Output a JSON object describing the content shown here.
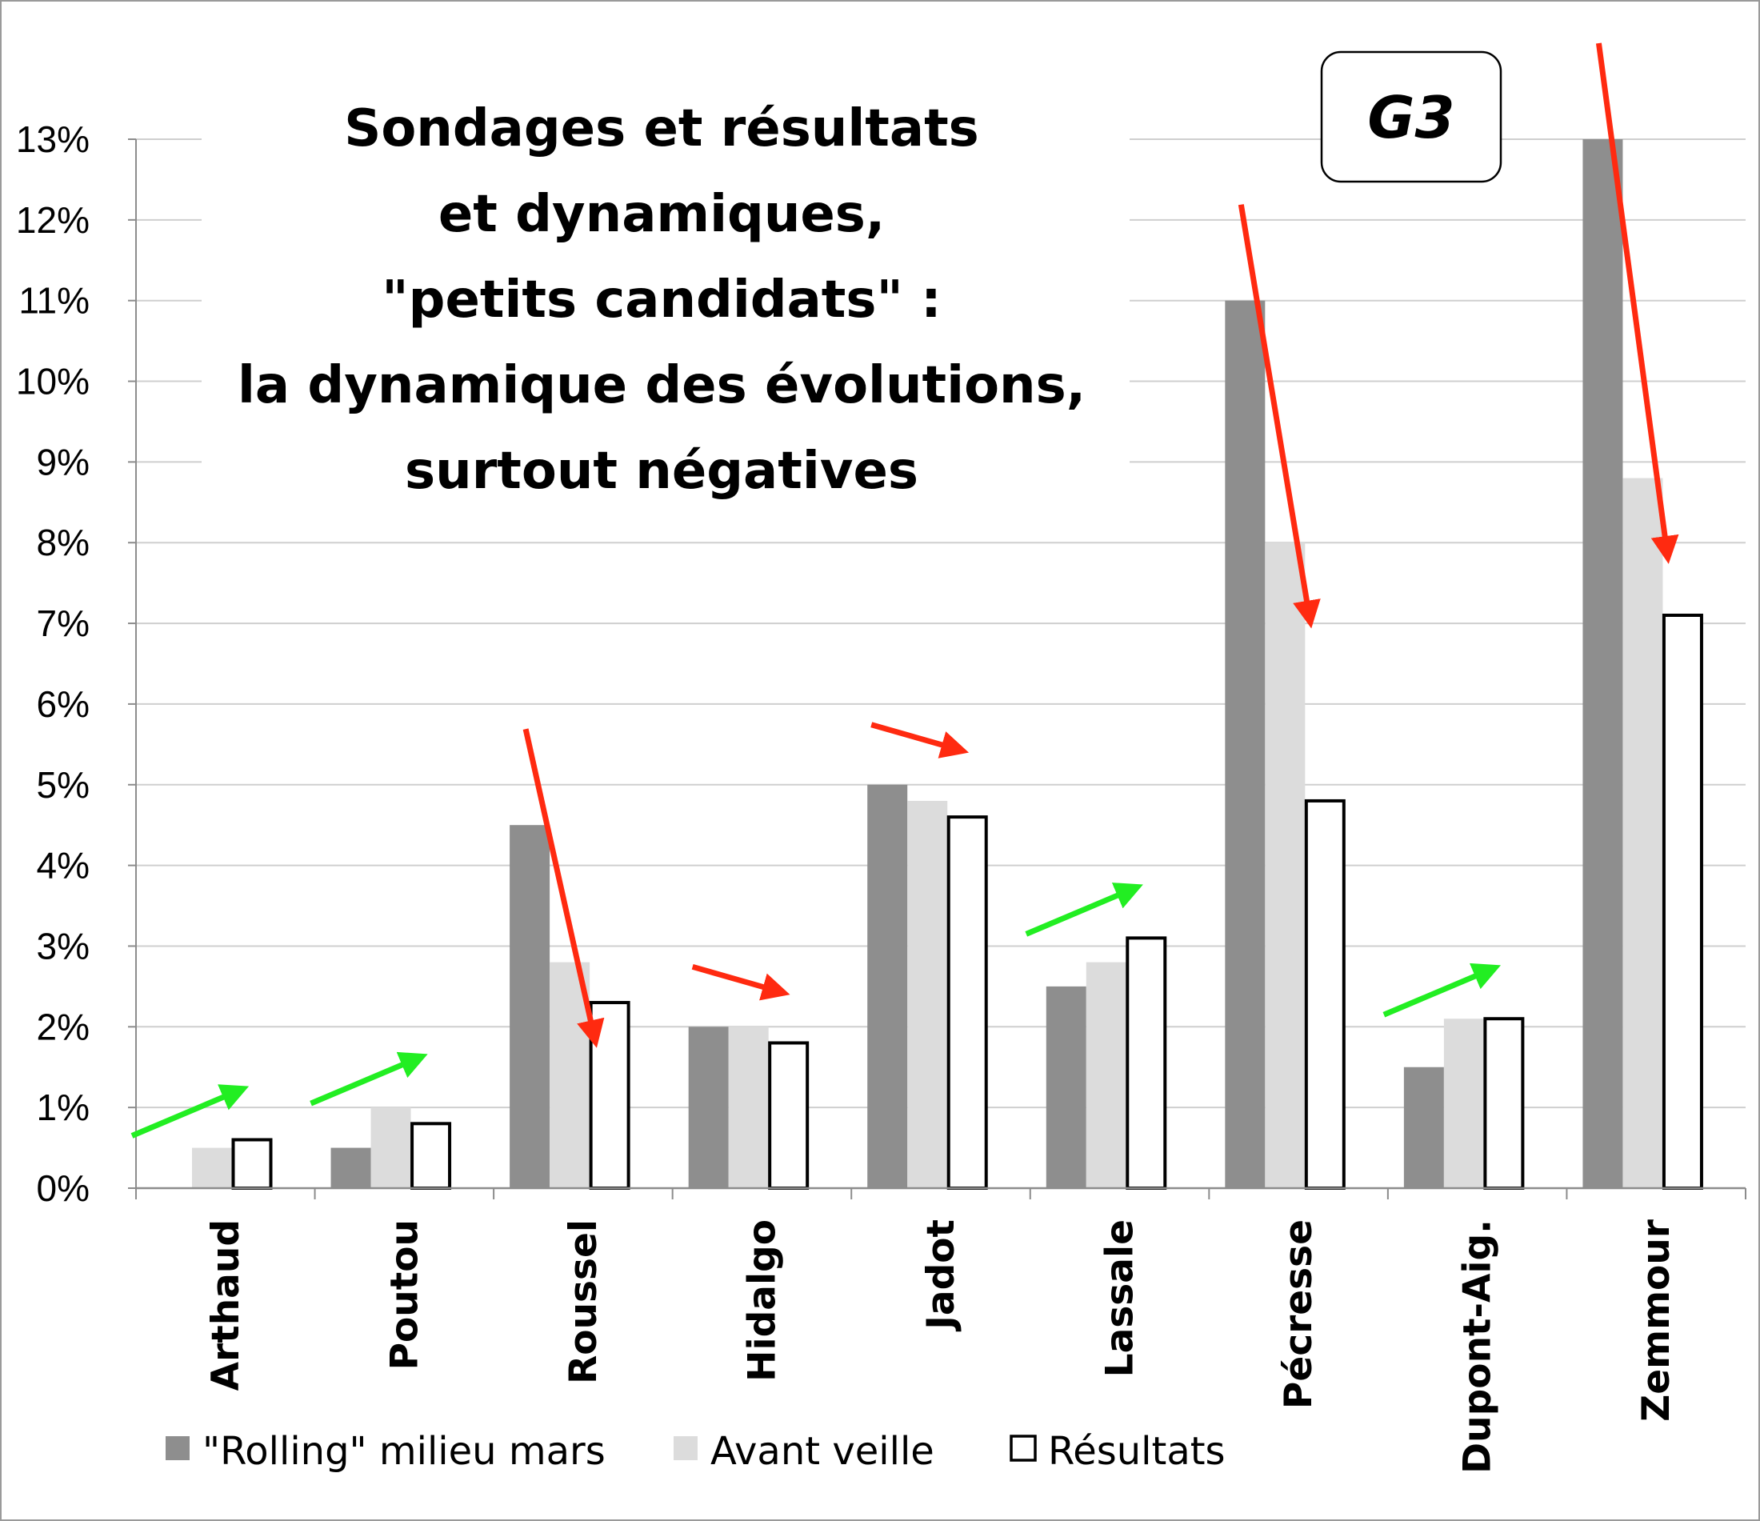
{
  "chart_data": {
    "type": "bar",
    "title_lines": [
      "Sondages et résultats",
      "et dynamiques,",
      "\"petits candidats\" :",
      "la dynamique des évolutions,",
      "surtout négatives"
    ],
    "badge": "G3",
    "categories": [
      "Arthaud",
      "Poutou",
      "Roussel",
      "Hidalgo",
      "Jadot",
      "Lassale",
      "Pécresse",
      "Dupont-Aig.",
      "Zemmour"
    ],
    "series": [
      {
        "name": "\"Rolling\" milieu mars",
        "color": "#8e8e8e",
        "values": [
          0.0,
          0.5,
          4.5,
          2.0,
          5.0,
          2.5,
          11.0,
          1.5,
          13.0
        ]
      },
      {
        "name": "Avant veille",
        "color": "#dcdcdc",
        "values": [
          0.5,
          1.0,
          2.8,
          2.0,
          4.8,
          2.8,
          8.0,
          2.1,
          8.8
        ]
      },
      {
        "name": "Résultats",
        "color": "#ffffff",
        "values": [
          0.6,
          0.8,
          2.3,
          1.8,
          4.6,
          3.1,
          4.8,
          2.1,
          7.1
        ]
      }
    ],
    "ylim": [
      0,
      13
    ],
    "yticks": [
      "0%",
      "1%",
      "2%",
      "3%",
      "4%",
      "5%",
      "6%",
      "7%",
      "8%",
      "9%",
      "10%",
      "11%",
      "12%",
      "13%"
    ],
    "grid": true,
    "legend_position": "bottom",
    "trend_arrows": [
      {
        "category": "Arthaud",
        "direction": "up",
        "color": "#22ee22"
      },
      {
        "category": "Poutou",
        "direction": "up",
        "color": "#22ee22"
      },
      {
        "category": "Roussel",
        "direction": "down",
        "color": "#ff2a10"
      },
      {
        "category": "Hidalgo",
        "direction": "down",
        "color": "#ff2a10"
      },
      {
        "category": "Jadot",
        "direction": "down",
        "color": "#ff2a10"
      },
      {
        "category": "Lassale",
        "direction": "up",
        "color": "#22ee22"
      },
      {
        "category": "Pécresse",
        "direction": "down",
        "color": "#ff2a10"
      },
      {
        "category": "Dupont-Aig.",
        "direction": "up",
        "color": "#22ee22"
      },
      {
        "category": "Zemmour",
        "direction": "down",
        "color": "#ff2a10"
      }
    ]
  }
}
